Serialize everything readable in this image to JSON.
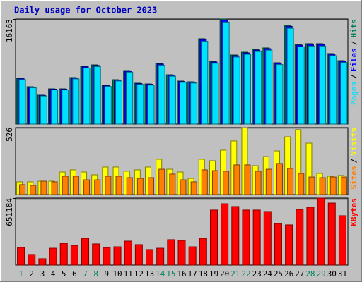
{
  "legend_separator": "/",
  "chart_data": [
    {
      "type": "bar",
      "title": "Daily usage for October 2023",
      "ylim": [
        0,
        16163
      ],
      "yticks": [
        16163
      ],
      "series": [
        {
          "name": "Hits",
          "color": "#00805c",
          "values": [
            7050,
            5750,
            4450,
            5420,
            5420,
            7160,
            8900,
            9110,
            5970,
            6830,
            8240,
            6290,
            6180,
            9330,
            7590,
            6620,
            6510,
            13130,
            9650,
            16163,
            10630,
            11060,
            11500,
            11720,
            9440,
            15190,
            12260,
            12370,
            12370,
            10850,
            9760
          ]
        },
        {
          "name": "Files",
          "color": "#0000ff",
          "values": [
            6980,
            5690,
            4400,
            5370,
            5370,
            7090,
            8810,
            9020,
            5910,
            6760,
            8160,
            6230,
            6120,
            9240,
            7510,
            6550,
            6450,
            13000,
            9550,
            16000,
            10520,
            10950,
            11380,
            11600,
            9350,
            15040,
            12140,
            12250,
            12250,
            10740,
            9660
          ]
        },
        {
          "name": "Pages",
          "color": "#00e0ff",
          "values": [
            6840,
            5580,
            4320,
            5260,
            5260,
            6950,
            8630,
            8840,
            5790,
            6630,
            7990,
            6100,
            5990,
            9050,
            7360,
            6420,
            6310,
            12740,
            9360,
            15680,
            10310,
            10730,
            11160,
            11370,
            9160,
            14730,
            11890,
            12000,
            12000,
            10520,
            9470
          ]
        }
      ]
    },
    {
      "type": "bar",
      "ylim": [
        0,
        526
      ],
      "yticks": [
        526
      ],
      "series": [
        {
          "name": "Visits",
          "color": "#ffff00",
          "values": [
            100,
            100,
            105,
            105,
            177,
            194,
            177,
            155,
            216,
            216,
            183,
            194,
            216,
            277,
            199,
            177,
            127,
            277,
            266,
            349,
            421,
            526,
            227,
            299,
            343,
            454,
            510,
            404,
            166,
            144,
            150
          ]
        },
        {
          "name": "Sites",
          "color": "#ff8000",
          "values": [
            78,
            72,
            105,
            100,
            144,
            144,
            116,
            116,
            144,
            144,
            133,
            127,
            133,
            199,
            161,
            116,
            100,
            194,
            188,
            183,
            233,
            233,
            183,
            199,
            244,
            205,
            166,
            138,
            133,
            138,
            138
          ]
        }
      ]
    },
    {
      "type": "bar",
      "ylim": [
        0,
        651184
      ],
      "yticks": [
        651184
      ],
      "categories": [
        "1",
        "2",
        "3",
        "4",
        "5",
        "6",
        "7",
        "8",
        "9",
        "10",
        "11",
        "12",
        "13",
        "14",
        "15",
        "16",
        "17",
        "18",
        "19",
        "20",
        "21",
        "22",
        "23",
        "24",
        "25",
        "26",
        "27",
        "28",
        "29",
        "30",
        "31"
      ],
      "label_colors": [
        "#00805c",
        "#000000",
        "#000000",
        "#000000",
        "#000000",
        "#000000",
        "#00805c",
        "#00805c",
        "#000000",
        "#000000",
        "#000000",
        "#000000",
        "#000000",
        "#00805c",
        "#00805c",
        "#000000",
        "#000000",
        "#000000",
        "#000000",
        "#000000",
        "#00805c",
        "#00805c",
        "#000000",
        "#000000",
        "#000000",
        "#000000",
        "#000000",
        "#00805c",
        "#00805c",
        "#000000",
        "#000000"
      ],
      "series": [
        {
          "name": "KBytes",
          "color": "#ff0000",
          "values": [
            171000,
            103000,
            62000,
            164000,
            212000,
            192000,
            260000,
            206000,
            171000,
            178000,
            233000,
            199000,
            151000,
            164000,
            247000,
            240000,
            178000,
            260000,
            535000,
            596000,
            569000,
            535000,
            535000,
            521000,
            404000,
            391000,
            541000,
            562000,
            651184,
            603000,
            480000
          ]
        }
      ]
    }
  ]
}
